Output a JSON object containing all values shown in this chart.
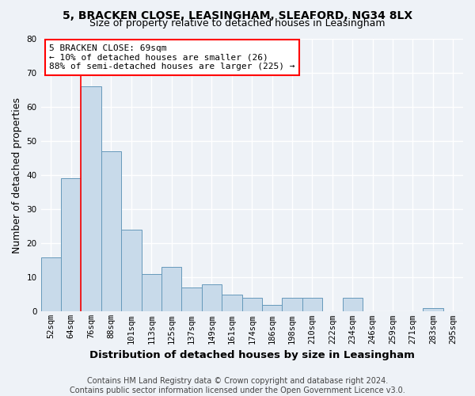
{
  "title_line1": "5, BRACKEN CLOSE, LEASINGHAM, SLEAFORD, NG34 8LX",
  "title_line2": "Size of property relative to detached houses in Leasingham",
  "xlabel": "Distribution of detached houses by size in Leasingham",
  "ylabel": "Number of detached properties",
  "bar_color": "#c8daea",
  "bar_edge_color": "#6699bb",
  "categories": [
    "52sqm",
    "64sqm",
    "76sqm",
    "88sqm",
    "101sqm",
    "113sqm",
    "125sqm",
    "137sqm",
    "149sqm",
    "161sqm",
    "174sqm",
    "186sqm",
    "198sqm",
    "210sqm",
    "222sqm",
    "234sqm",
    "246sqm",
    "259sqm",
    "271sqm",
    "283sqm",
    "295sqm"
  ],
  "values": [
    16,
    39,
    66,
    47,
    24,
    11,
    13,
    7,
    8,
    5,
    4,
    2,
    4,
    4,
    0,
    4,
    0,
    0,
    0,
    1,
    0
  ],
  "ylim": [
    0,
    80
  ],
  "yticks": [
    0,
    10,
    20,
    30,
    40,
    50,
    60,
    70,
    80
  ],
  "red_line_x": 1.5,
  "annotation_text": "5 BRACKEN CLOSE: 69sqm\n← 10% of detached houses are smaller (26)\n88% of semi-detached houses are larger (225) →",
  "annotation_box_color": "white",
  "annotation_box_edge": "red",
  "footer_line1": "Contains HM Land Registry data © Crown copyright and database right 2024.",
  "footer_line2": "Contains public sector information licensed under the Open Government Licence v3.0.",
  "background_color": "#eef2f7",
  "grid_color": "#ffffff",
  "title_fontsize": 10,
  "subtitle_fontsize": 9,
  "axis_label_fontsize": 9,
  "tick_fontsize": 7.5,
  "annotation_fontsize": 8,
  "footer_fontsize": 7
}
